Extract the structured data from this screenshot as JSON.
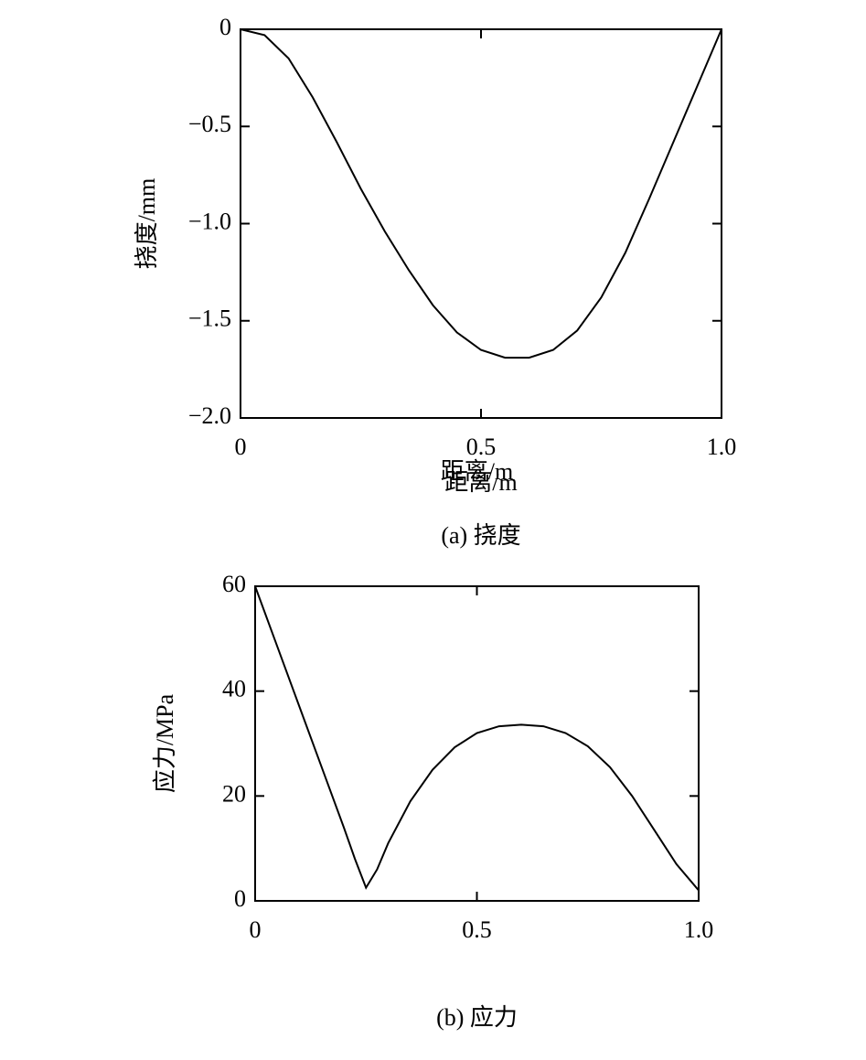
{
  "chart_data": [
    {
      "type": "line",
      "xlabel": "距离/m",
      "ylabel": "挠度/mm",
      "caption": "(a) 挠度",
      "x": [
        0,
        0.05,
        0.1,
        0.15,
        0.2,
        0.25,
        0.3,
        0.35,
        0.4,
        0.45,
        0.5,
        0.55,
        0.6,
        0.65,
        0.7,
        0.75,
        0.8,
        0.85,
        0.9,
        0.95,
        1.0
      ],
      "series": [
        {
          "color": "#000000",
          "values": [
            0,
            -0.03,
            -0.15,
            -0.35,
            -0.58,
            -0.82,
            -1.04,
            -1.24,
            -1.42,
            -1.56,
            -1.65,
            -1.69,
            -1.69,
            -1.65,
            -1.55,
            -1.38,
            -1.15,
            -0.87,
            -0.58,
            -0.29,
            0
          ]
        }
      ],
      "xlim": [
        0,
        1
      ],
      "xticks": [
        0,
        0.5,
        {
          "value": 1,
          "label": "1.0"
        }
      ],
      "ylim": [
        -2,
        0
      ],
      "yticks": [
        0,
        {
          "value": -0.5,
          "label": "−0.5"
        },
        {
          "value": -1,
          "label": "−1.0"
        },
        {
          "value": -1.5,
          "label": "−1.5"
        },
        {
          "value": -2,
          "label": "−2.0"
        }
      ]
    },
    {
      "type": "line",
      "xlabel": "距离/m",
      "ylabel": "应力/MPa",
      "caption": "(b) 应力",
      "x": [
        0,
        0.05,
        0.1,
        0.15,
        0.2,
        0.225,
        0.25,
        0.275,
        0.3,
        0.35,
        0.4,
        0.45,
        0.5,
        0.55,
        0.6,
        0.65,
        0.7,
        0.75,
        0.8,
        0.85,
        0.9,
        0.95,
        1.0
      ],
      "series": [
        {
          "color": "#000000",
          "values": [
            60,
            48.5,
            37,
            25.5,
            14,
            8,
            2.5,
            6,
            11,
            19,
            25,
            29.3,
            32,
            33.3,
            33.6,
            33.3,
            32,
            29.5,
            25.5,
            20,
            13.5,
            7,
            2
          ]
        }
      ],
      "xlim": [
        0,
        1
      ],
      "xticks": [
        0,
        0.5,
        {
          "value": 1,
          "label": "1.0"
        }
      ],
      "ylim": [
        0,
        60
      ],
      "yticks": [
        0,
        20,
        40,
        60
      ]
    }
  ]
}
